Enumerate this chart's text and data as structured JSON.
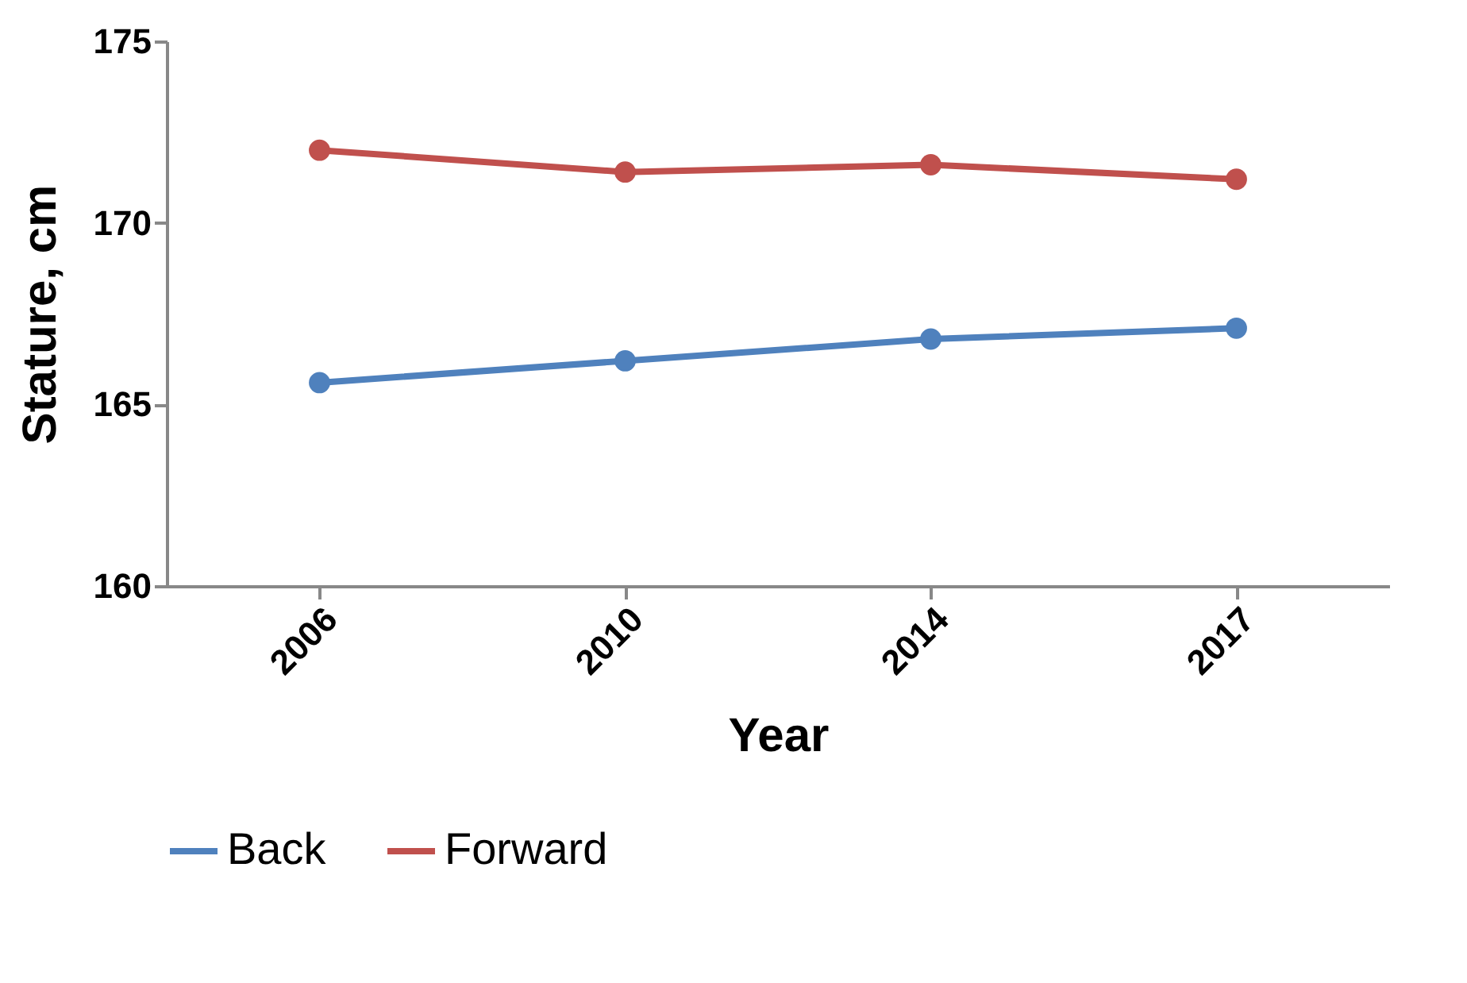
{
  "chart_data": {
    "type": "line",
    "xlabel": "Year",
    "ylabel": "Stature, cm",
    "categories": [
      "2006",
      "2010",
      "2014",
      "2017"
    ],
    "series": [
      {
        "name": "Back",
        "color": "#4f81bd",
        "values": [
          165.6,
          166.2,
          166.8,
          167.1
        ]
      },
      {
        "name": "Forward",
        "color": "#c0504d",
        "values": [
          172.0,
          171.4,
          171.6,
          171.2
        ]
      }
    ],
    "ylim": [
      160,
      175
    ],
    "yticks": [
      160,
      165,
      170,
      175
    ],
    "grid": false,
    "legend": "bottom",
    "marker": "circle",
    "line_style": "solid"
  }
}
